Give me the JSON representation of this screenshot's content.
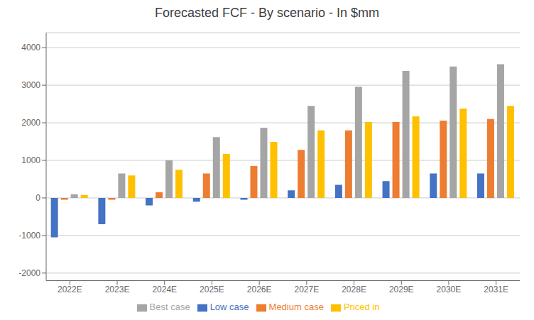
{
  "chart_data": {
    "type": "bar",
    "title": "Forecasted FCF - By scenario - In $mm",
    "categories": [
      "2022E",
      "2023E",
      "2024E",
      "2025E",
      "2026E",
      "2027E",
      "2028E",
      "2029E",
      "2030E",
      "2031E"
    ],
    "series": [
      {
        "name": "Low case",
        "color": "#4472C4",
        "values": [
          -1050,
          -700,
          -200,
          -100,
          -50,
          200,
          350,
          450,
          650,
          650
        ]
      },
      {
        "name": "Medium case",
        "color": "#ED7D31",
        "values": [
          -50,
          -50,
          150,
          650,
          850,
          1280,
          1800,
          2020,
          2060,
          2100
        ]
      },
      {
        "name": "Best case",
        "color": "#A5A5A5",
        "values": [
          100,
          650,
          1000,
          1620,
          1870,
          2450,
          2960,
          3380,
          3500,
          3560
        ]
      },
      {
        "name": "Priced in",
        "color": "#FFC000",
        "values": [
          80,
          600,
          750,
          1170,
          1490,
          1800,
          2020,
          2170,
          2380,
          2450
        ]
      }
    ],
    "ylim": [
      -2200,
      4400
    ],
    "yticks": [
      -2000,
      -1000,
      0,
      1000,
      2000,
      3000,
      4000
    ],
    "grid": true,
    "legend": "bottom"
  }
}
